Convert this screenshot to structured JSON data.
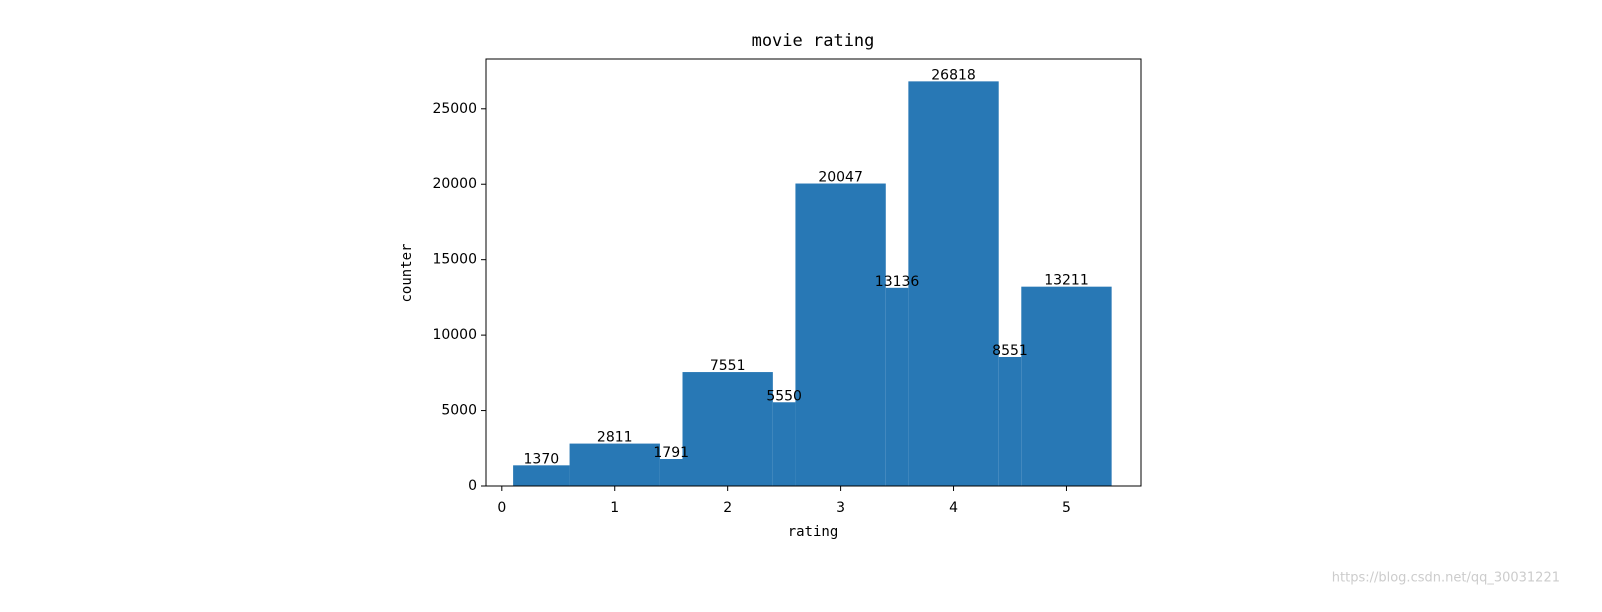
{
  "chart_data": {
    "type": "histogram",
    "title": "movie rating",
    "x_label": "rating",
    "y_label": "counter",
    "bins": [
      0.1,
      0.6,
      1.4,
      1.6,
      2.4,
      2.6,
      3.4,
      3.6,
      4.4,
      4.6,
      5.4
    ],
    "counts": [
      1370,
      2811,
      1791,
      7551,
      5550,
      20047,
      13136,
      26818,
      8551,
      13211
    ],
    "color": "#2878b5",
    "xlim": [
      -0.14,
      5.66
    ],
    "xticks": [
      0,
      1,
      2,
      3,
      4,
      5
    ],
    "ylim": [
      0,
      28300
    ],
    "yticks": [
      0,
      5000,
      10000,
      15000,
      20000,
      25000
    ],
    "grid": false
  },
  "watermark": "https://blog.csdn.net/qq_30031221"
}
